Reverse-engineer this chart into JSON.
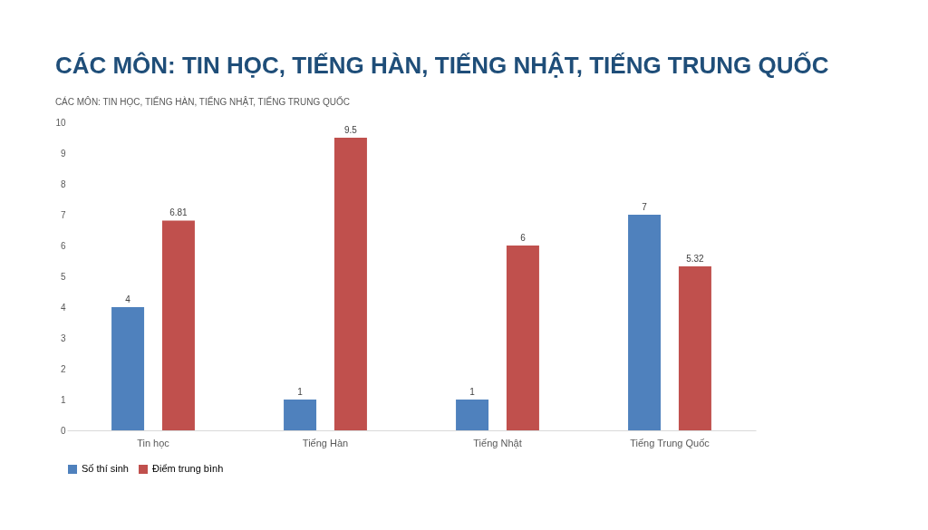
{
  "chart_data": {
    "type": "bar",
    "title": "CÁC MÔN: TIN HỌC, TIẾNG HÀN, TIẾNG NHẬT, TIẾNG TRUNG QUỐC",
    "subtitle": "CÁC MÔN: TIN HỌC, TIẾNG HÀN, TIẾNG NHẬT, TIẾNG TRUNG QUỐC",
    "categories": [
      "Tin học",
      "Tiếng Hàn",
      "Tiếng Nhật",
      "Tiếng Trung Quốc"
    ],
    "series": [
      {
        "name": "Số thí sinh",
        "color": "#4f81bd",
        "values": [
          4,
          1,
          1,
          7
        ]
      },
      {
        "name": "Điểm trung bình",
        "color": "#c0504d",
        "values": [
          6.81,
          9.5,
          6,
          5.32
        ]
      }
    ],
    "ylim": [
      0,
      10
    ],
    "yticks": [
      0,
      1,
      2,
      3,
      4,
      5,
      6,
      7,
      8,
      9,
      10
    ],
    "grid": false,
    "legend": "bottom",
    "data_labels": true
  }
}
